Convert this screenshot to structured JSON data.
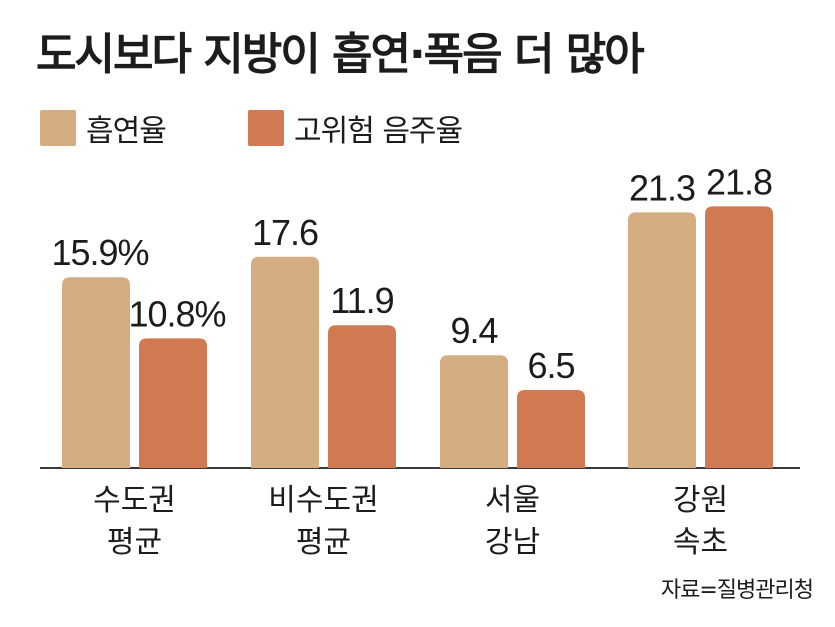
{
  "title": "도시보다 지방이 흡연·폭음 더 많아",
  "legend": [
    {
      "label": "흡연율",
      "color": "#d4ad82"
    },
    {
      "label": "고위험 음주율",
      "color": "#d17a52"
    }
  ],
  "source": "자료=질병관리청",
  "chart_data": {
    "type": "bar",
    "title": "도시보다 지방이 흡연·폭음 더 많아",
    "categories": [
      [
        "수도권",
        "평균"
      ],
      [
        "비수도권",
        "평균"
      ],
      [
        "서울",
        "강남"
      ],
      [
        "강원",
        "속초"
      ]
    ],
    "series": [
      {
        "name": "흡연율",
        "color": "#d4ad82",
        "values": [
          15.9,
          17.6,
          9.4,
          21.3
        ],
        "labels": [
          "15.9%",
          "17.6",
          "9.4",
          "21.3"
        ]
      },
      {
        "name": "고위험 음주율",
        "color": "#d17a52",
        "values": [
          10.8,
          11.9,
          6.5,
          21.8
        ],
        "labels": [
          "10.8%",
          "11.9",
          "6.5",
          "21.8"
        ]
      }
    ],
    "ylim": [
      0,
      22
    ],
    "grid": false,
    "legend_position": "top-left"
  }
}
